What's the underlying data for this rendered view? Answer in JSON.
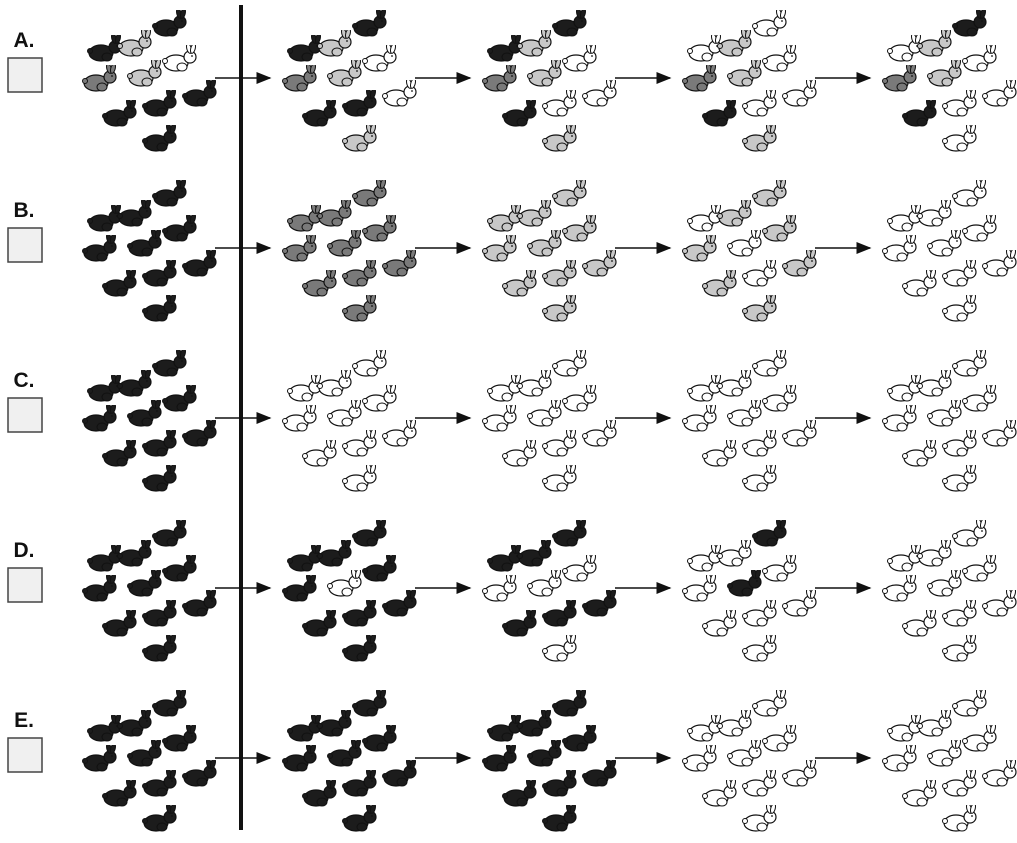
{
  "options": [
    {
      "label": "A."
    },
    {
      "label": "B."
    },
    {
      "label": "C."
    },
    {
      "label": "D."
    },
    {
      "label": "E."
    }
  ]
}
